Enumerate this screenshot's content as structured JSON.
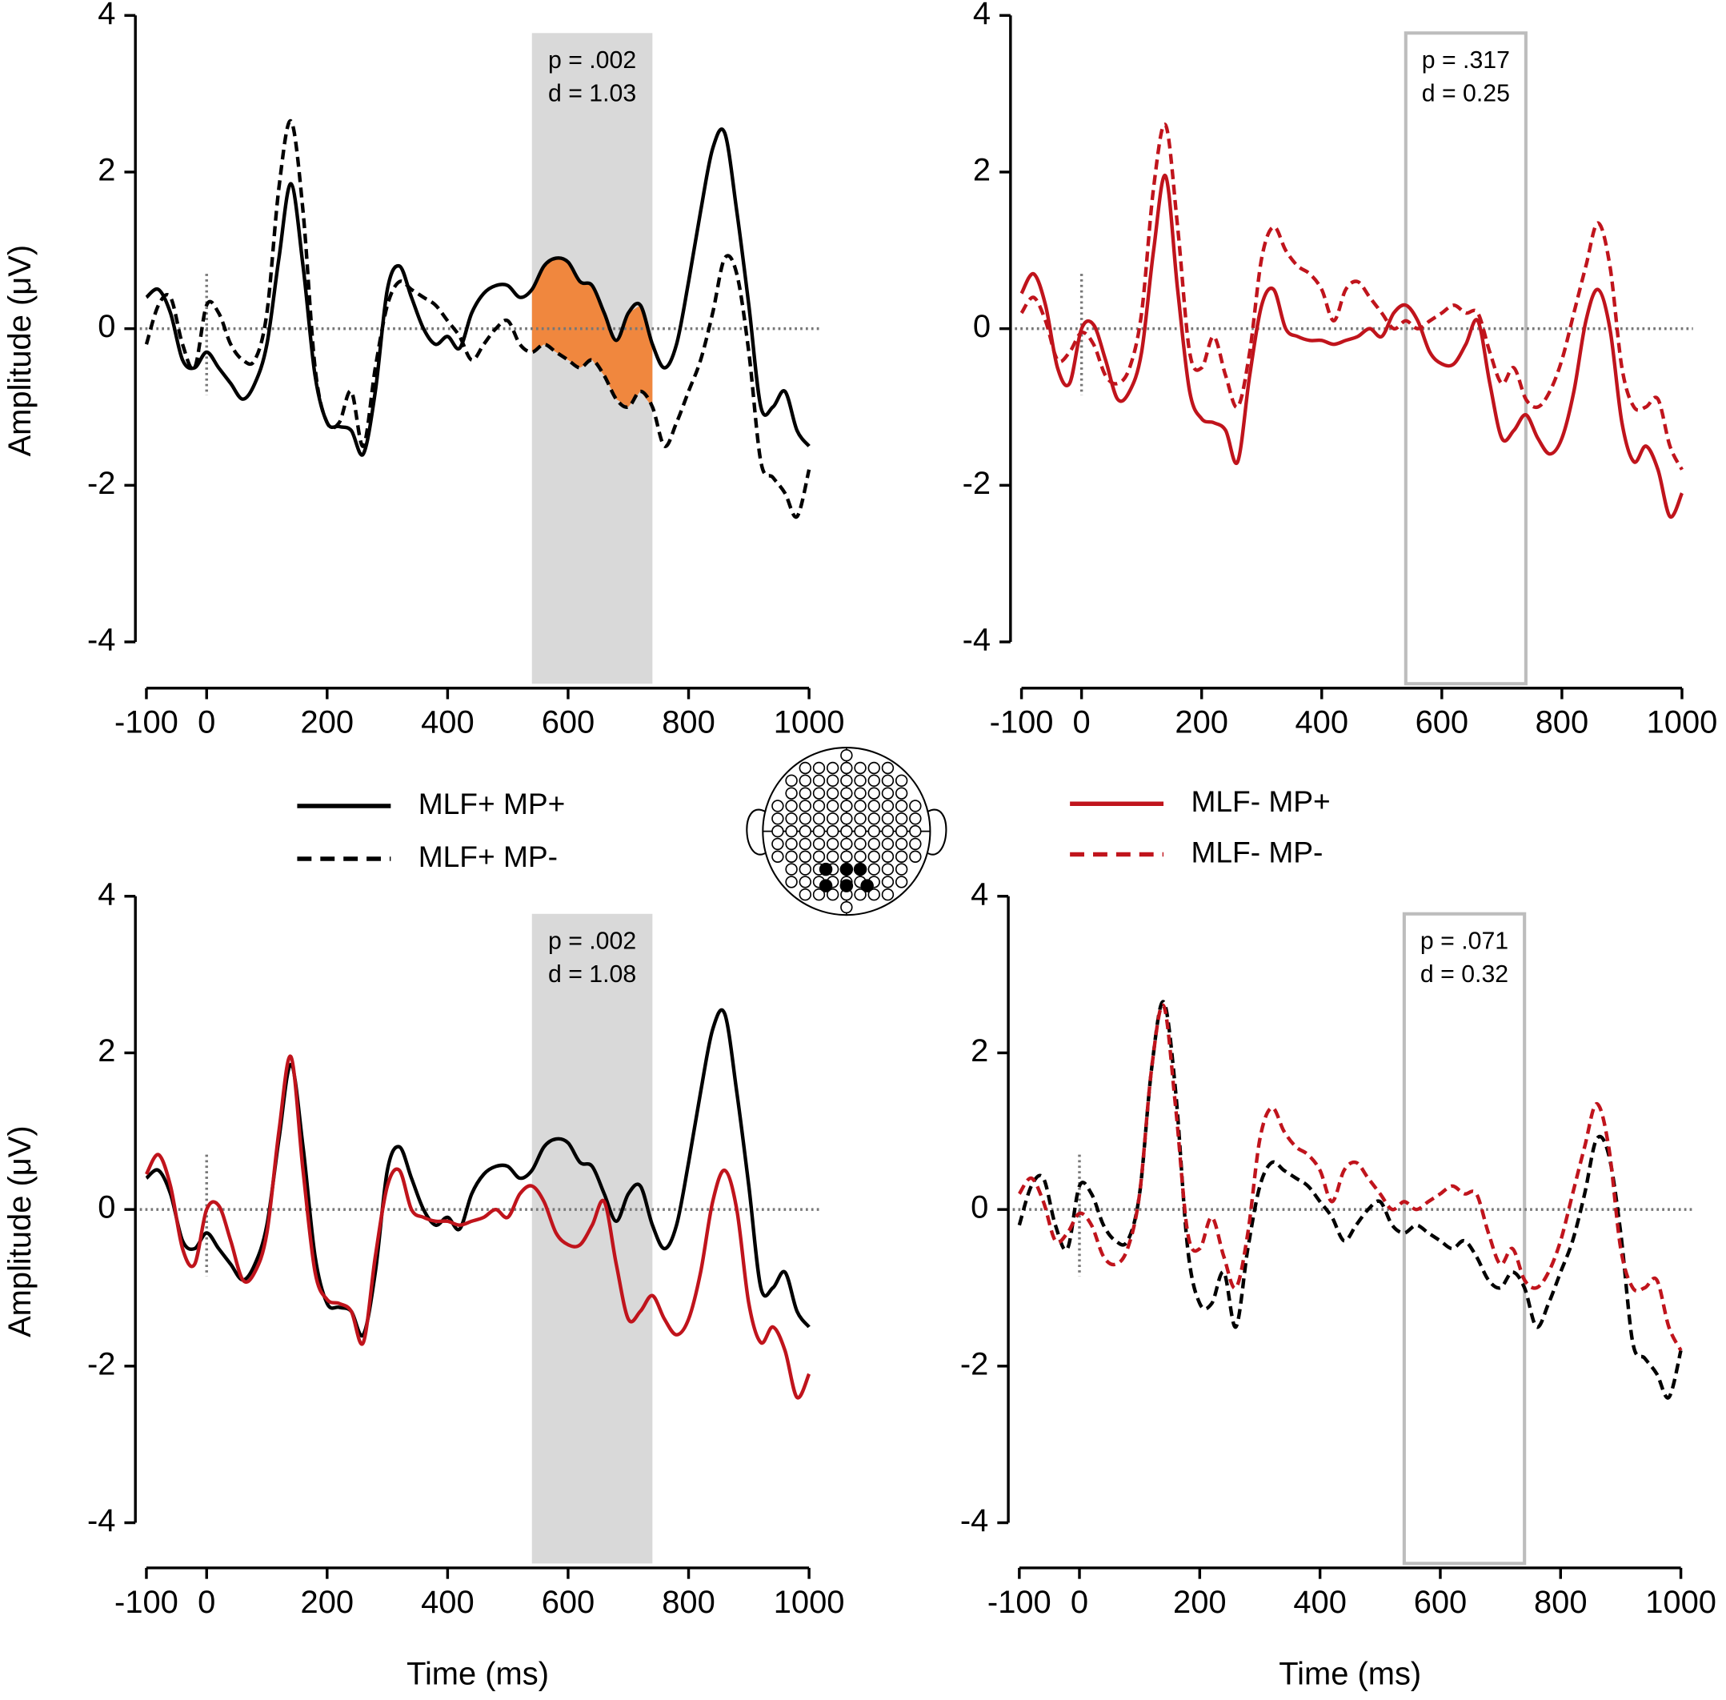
{
  "chart_data": [
    {
      "type": "line",
      "x": [
        -100,
        -80,
        -60,
        -40,
        -20,
        0,
        20,
        40,
        60,
        80,
        100,
        120,
        140,
        160,
        180,
        200,
        220,
        240,
        260,
        280,
        300,
        320,
        340,
        360,
        380,
        400,
        420,
        440,
        460,
        480,
        500,
        520,
        540,
        560,
        580,
        600,
        620,
        640,
        660,
        680,
        700,
        720,
        740,
        760,
        780,
        800,
        820,
        840,
        860,
        880,
        900,
        920,
        940,
        960,
        980,
        1000
      ],
      "series": [
        {
          "name": "MLF+ MP+",
          "color": "#000000",
          "dash": false,
          "values": [
            0.4,
            0.5,
            0.2,
            -0.4,
            -0.5,
            -0.3,
            -0.5,
            -0.7,
            -0.9,
            -0.7,
            -0.2,
            0.9,
            1.85,
            0.8,
            -0.6,
            -1.2,
            -1.25,
            -1.3,
            -1.6,
            -0.8,
            0.5,
            0.8,
            0.4,
            0.0,
            -0.2,
            -0.1,
            -0.25,
            0.2,
            0.45,
            0.55,
            0.55,
            0.4,
            0.5,
            0.8,
            0.9,
            0.85,
            0.6,
            0.55,
            0.2,
            -0.15,
            0.2,
            0.3,
            -0.2,
            -0.5,
            -0.2,
            0.6,
            1.5,
            2.3,
            2.5,
            1.5,
            0.3,
            -1.0,
            -1.0,
            -0.8,
            -1.3,
            -1.5
          ]
        },
        {
          "name": "MLF+ MP-",
          "color": "#000000",
          "dash": true,
          "values": [
            -0.2,
            0.3,
            0.4,
            -0.2,
            -0.5,
            0.3,
            0.2,
            -0.2,
            -0.4,
            -0.4,
            0.2,
            1.8,
            2.65,
            1.5,
            -0.5,
            -1.2,
            -1.2,
            -0.8,
            -1.5,
            -0.5,
            0.3,
            0.6,
            0.5,
            0.4,
            0.3,
            0.1,
            -0.1,
            -0.4,
            -0.2,
            0.0,
            0.1,
            -0.2,
            -0.3,
            -0.2,
            -0.3,
            -0.4,
            -0.5,
            -0.4,
            -0.6,
            -0.9,
            -1.0,
            -0.8,
            -1.0,
            -1.5,
            -1.2,
            -0.8,
            -0.4,
            0.2,
            0.9,
            0.7,
            -0.3,
            -1.7,
            -1.9,
            -2.1,
            -2.4,
            -1.8
          ]
        }
      ],
      "xlim": [
        -100,
        1000
      ],
      "ylim": [
        -4,
        4
      ],
      "xticks": [
        -100,
        0,
        200,
        400,
        600,
        800,
        1000
      ],
      "yticks": [
        -4,
        -2,
        0,
        2,
        4
      ],
      "ylabel": "Amplitude (μV)",
      "annotations": [
        "p = .002",
        "d = 1.03"
      ],
      "highlight": {
        "x": [
          540,
          740
        ],
        "style": "shaded",
        "fill_between": true,
        "color": "#f0873e"
      },
      "legend": true
    },
    {
      "type": "line",
      "x": [
        -100,
        -80,
        -60,
        -40,
        -20,
        0,
        20,
        40,
        60,
        80,
        100,
        120,
        140,
        160,
        180,
        200,
        220,
        240,
        260,
        280,
        300,
        320,
        340,
        360,
        380,
        400,
        420,
        440,
        460,
        480,
        500,
        520,
        540,
        560,
        580,
        600,
        620,
        640,
        660,
        680,
        700,
        720,
        740,
        760,
        780,
        800,
        820,
        840,
        860,
        880,
        900,
        920,
        940,
        960,
        980,
        1000
      ],
      "series": [
        {
          "name": "MLF- MP+",
          "color": "#c0141c",
          "dash": false,
          "values": [
            0.45,
            0.7,
            0.3,
            -0.5,
            -0.7,
            0.0,
            0.05,
            -0.4,
            -0.9,
            -0.8,
            -0.3,
            1.0,
            1.95,
            0.5,
            -0.8,
            -1.15,
            -1.2,
            -1.3,
            -1.7,
            -0.6,
            0.3,
            0.5,
            0.0,
            -0.1,
            -0.15,
            -0.15,
            -0.2,
            -0.15,
            -0.1,
            0.0,
            -0.1,
            0.2,
            0.3,
            0.1,
            -0.3,
            -0.45,
            -0.45,
            -0.2,
            0.1,
            -0.7,
            -1.4,
            -1.3,
            -1.1,
            -1.4,
            -1.6,
            -1.4,
            -0.8,
            0.1,
            0.5,
            0.0,
            -1.2,
            -1.7,
            -1.5,
            -1.8,
            -2.4,
            -2.1
          ]
        },
        {
          "name": "MLF- MP-",
          "color": "#c0141c",
          "dash": true,
          "values": [
            0.2,
            0.4,
            0.1,
            -0.4,
            -0.3,
            -0.05,
            -0.2,
            -0.6,
            -0.7,
            -0.5,
            0.2,
            1.8,
            2.6,
            1.3,
            -0.3,
            -0.5,
            -0.1,
            -0.6,
            -1.0,
            -0.3,
            0.9,
            1.3,
            1.0,
            0.8,
            0.7,
            0.5,
            0.1,
            0.5,
            0.6,
            0.4,
            0.2,
            0.0,
            0.1,
            0.0,
            0.1,
            0.2,
            0.3,
            0.2,
            0.2,
            -0.3,
            -0.7,
            -0.5,
            -0.9,
            -1.0,
            -0.8,
            -0.4,
            0.2,
            0.8,
            1.35,
            0.8,
            -0.5,
            -1.0,
            -1.0,
            -0.9,
            -1.5,
            -1.8
          ]
        }
      ],
      "xlim": [
        -100,
        1000
      ],
      "ylim": [
        -4,
        4
      ],
      "xticks": [
        -100,
        0,
        200,
        400,
        600,
        800,
        1000
      ],
      "yticks": [
        -4,
        -2,
        0,
        2,
        4
      ],
      "annotations": [
        "p = .317",
        "d = 0.25"
      ],
      "highlight": {
        "x": [
          540,
          740
        ],
        "style": "outline",
        "fill_between": false
      },
      "legend": true
    },
    {
      "type": "line",
      "x": [
        -100,
        -80,
        -60,
        -40,
        -20,
        0,
        20,
        40,
        60,
        80,
        100,
        120,
        140,
        160,
        180,
        200,
        220,
        240,
        260,
        280,
        300,
        320,
        340,
        360,
        380,
        400,
        420,
        440,
        460,
        480,
        500,
        520,
        540,
        560,
        580,
        600,
        620,
        640,
        660,
        680,
        700,
        720,
        740,
        760,
        780,
        800,
        820,
        840,
        860,
        880,
        900,
        920,
        940,
        960,
        980,
        1000
      ],
      "series": [
        {
          "color": "#000000",
          "dash": false,
          "values": [
            0.4,
            0.5,
            0.2,
            -0.4,
            -0.5,
            -0.3,
            -0.5,
            -0.7,
            -0.9,
            -0.7,
            -0.2,
            0.9,
            1.85,
            0.8,
            -0.6,
            -1.2,
            -1.25,
            -1.3,
            -1.6,
            -0.8,
            0.5,
            0.8,
            0.4,
            0.0,
            -0.2,
            -0.1,
            -0.25,
            0.2,
            0.45,
            0.55,
            0.55,
            0.4,
            0.5,
            0.8,
            0.9,
            0.85,
            0.6,
            0.55,
            0.2,
            -0.15,
            0.2,
            0.3,
            -0.2,
            -0.5,
            -0.2,
            0.6,
            1.5,
            2.3,
            2.5,
            1.5,
            0.3,
            -1.0,
            -1.0,
            -0.8,
            -1.3,
            -1.5
          ]
        },
        {
          "color": "#c0141c",
          "dash": false,
          "values": [
            0.45,
            0.7,
            0.3,
            -0.5,
            -0.7,
            0.0,
            0.05,
            -0.4,
            -0.9,
            -0.8,
            -0.3,
            1.0,
            1.95,
            0.5,
            -0.8,
            -1.15,
            -1.2,
            -1.3,
            -1.7,
            -0.6,
            0.3,
            0.5,
            0.0,
            -0.1,
            -0.15,
            -0.15,
            -0.2,
            -0.15,
            -0.1,
            0.0,
            -0.1,
            0.2,
            0.3,
            0.1,
            -0.3,
            -0.45,
            -0.45,
            -0.2,
            0.1,
            -0.7,
            -1.4,
            -1.3,
            -1.1,
            -1.4,
            -1.6,
            -1.4,
            -0.8,
            0.1,
            0.5,
            0.0,
            -1.2,
            -1.7,
            -1.5,
            -1.8,
            -2.4,
            -2.1
          ]
        }
      ],
      "xlim": [
        -100,
        1000
      ],
      "ylim": [
        -4,
        4
      ],
      "xticks": [
        -100,
        0,
        200,
        400,
        600,
        800,
        1000
      ],
      "yticks": [
        -4,
        -2,
        0,
        2,
        4
      ],
      "ylabel": "Amplitude (μV)",
      "xlabel": "Time (ms)",
      "annotations": [
        "p = .002",
        "d = 1.08"
      ],
      "highlight": {
        "x": [
          540,
          740
        ],
        "style": "shaded",
        "fill_between": false
      },
      "legend": false
    },
    {
      "type": "line",
      "x": [
        -100,
        -80,
        -60,
        -40,
        -20,
        0,
        20,
        40,
        60,
        80,
        100,
        120,
        140,
        160,
        180,
        200,
        220,
        240,
        260,
        280,
        300,
        320,
        340,
        360,
        380,
        400,
        420,
        440,
        460,
        480,
        500,
        520,
        540,
        560,
        580,
        600,
        620,
        640,
        660,
        680,
        700,
        720,
        740,
        760,
        780,
        800,
        820,
        840,
        860,
        880,
        900,
        920,
        940,
        960,
        980,
        1000
      ],
      "series": [
        {
          "color": "#000000",
          "dash": true,
          "values": [
            -0.2,
            0.3,
            0.4,
            -0.2,
            -0.5,
            0.3,
            0.2,
            -0.2,
            -0.4,
            -0.4,
            0.2,
            1.8,
            2.65,
            1.5,
            -0.5,
            -1.2,
            -1.2,
            -0.8,
            -1.5,
            -0.5,
            0.3,
            0.6,
            0.5,
            0.4,
            0.3,
            0.1,
            -0.1,
            -0.4,
            -0.2,
            0.0,
            0.1,
            -0.2,
            -0.3,
            -0.2,
            -0.3,
            -0.4,
            -0.5,
            -0.4,
            -0.6,
            -0.9,
            -1.0,
            -0.8,
            -1.0,
            -1.5,
            -1.2,
            -0.8,
            -0.4,
            0.2,
            0.9,
            0.7,
            -0.3,
            -1.7,
            -1.9,
            -2.1,
            -2.4,
            -1.8
          ]
        },
        {
          "color": "#c0141c",
          "dash": true,
          "values": [
            0.2,
            0.4,
            0.1,
            -0.4,
            -0.3,
            -0.05,
            -0.2,
            -0.6,
            -0.7,
            -0.5,
            0.2,
            1.8,
            2.6,
            1.3,
            -0.3,
            -0.5,
            -0.1,
            -0.6,
            -1.0,
            -0.3,
            0.9,
            1.3,
            1.0,
            0.8,
            0.7,
            0.5,
            0.1,
            0.5,
            0.6,
            0.4,
            0.2,
            0.0,
            0.1,
            0.0,
            0.1,
            0.2,
            0.3,
            0.2,
            0.2,
            -0.3,
            -0.7,
            -0.5,
            -0.9,
            -1.0,
            -0.8,
            -0.4,
            0.2,
            0.8,
            1.35,
            0.8,
            -0.5,
            -1.0,
            -1.0,
            -0.9,
            -1.5,
            -1.8
          ]
        }
      ],
      "xlim": [
        -100,
        1000
      ],
      "ylim": [
        -4,
        4
      ],
      "xticks": [
        -100,
        0,
        200,
        400,
        600,
        800,
        1000
      ],
      "yticks": [
        -4,
        -2,
        0,
        2,
        4
      ],
      "xlabel": "Time (ms)",
      "annotations": [
        "p = .071",
        "d = 0.32"
      ],
      "highlight": {
        "x": [
          540,
          740
        ],
        "style": "outline",
        "fill_between": false
      },
      "legend": false
    }
  ]
}
